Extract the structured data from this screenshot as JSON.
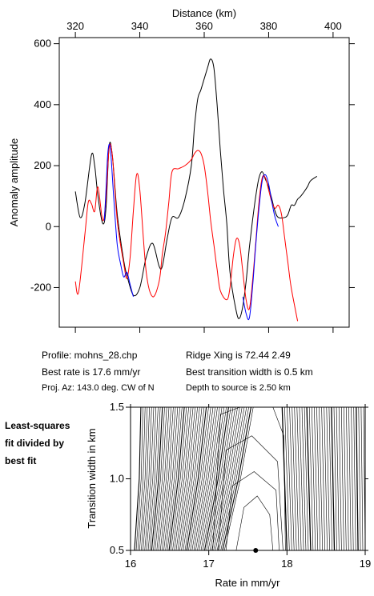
{
  "chart_data": [
    {
      "type": "line",
      "xlabel": "Distance (km)",
      "ylabel": "Anomaly amplitude",
      "xlim": [
        315,
        405
      ],
      "ylim": [
        -330,
        620
      ],
      "xticks": [
        "320",
        "340",
        "360",
        "380",
        "400"
      ],
      "yticks": [
        "600",
        "400",
        "200",
        "0",
        "-200"
      ],
      "xtick_values": [
        320,
        340,
        360,
        380,
        400
      ],
      "ytick_values": [
        600,
        400,
        200,
        0,
        -200
      ],
      "series": [
        {
          "color": "#000000",
          "x": [
            320,
            321.5,
            323,
            325,
            326,
            327,
            328.5,
            329.5,
            330.5,
            331.5,
            333,
            335,
            336,
            338,
            340,
            342,
            344,
            346,
            347,
            348.5,
            350,
            352,
            354,
            356,
            357,
            358,
            359,
            361,
            362,
            363,
            364,
            365,
            366,
            367,
            368,
            370,
            371,
            372,
            373,
            374,
            375,
            376,
            377,
            378,
            379,
            380,
            381,
            382,
            383,
            385,
            386,
            387,
            388,
            389,
            390,
            392,
            393,
            395
          ],
          "y": [
            115,
            30,
            80,
            235,
            200,
            100,
            10,
            60,
            265,
            230,
            40,
            -110,
            -160,
            -225,
            -200,
            -100,
            -55,
            -130,
            -130,
            -40,
            30,
            30,
            90,
            200,
            330,
            420,
            450,
            520,
            550,
            520,
            400,
            250,
            120,
            10,
            -150,
            -280,
            -300,
            -260,
            -180,
            -70,
            20,
            100,
            160,
            180,
            155,
            130,
            90,
            50,
            30,
            30,
            40,
            70,
            70,
            90,
            100,
            130,
            150,
            165
          ]
        },
        {
          "color": "#ff0000",
          "x": [
            320,
            321,
            323,
            324,
            325,
            326,
            327,
            328.5,
            329.5,
            330.5,
            331.5,
            333,
            335,
            336,
            337,
            338,
            339,
            340,
            342,
            344,
            346,
            347,
            348,
            349,
            350,
            352,
            354,
            356,
            357,
            358,
            359,
            360,
            361,
            362,
            363,
            364,
            365,
            367,
            368,
            369,
            370,
            371,
            372,
            373,
            374,
            375,
            376,
            377,
            378,
            379,
            380,
            381,
            382,
            383,
            384,
            385,
            386,
            387,
            389
          ],
          "y": [
            -180,
            -215,
            -20,
            80,
            75,
            50,
            130,
            20,
            90,
            260,
            230,
            20,
            -120,
            -170,
            -100,
            50,
            170,
            120,
            -150,
            -230,
            -180,
            -90,
            -20,
            80,
            180,
            190,
            200,
            220,
            240,
            250,
            240,
            200,
            120,
            20,
            -60,
            -140,
            -210,
            -240,
            -200,
            -100,
            -40,
            -60,
            -150,
            -240,
            -270,
            -180,
            -50,
            80,
            160,
            160,
            120,
            80,
            60,
            70,
            40,
            -40,
            -120,
            -200,
            -310
          ]
        },
        {
          "color": "#0000ff",
          "x": [
            329,
            329.5,
            330,
            330.5,
            331,
            332,
            333,
            334,
            335,
            336,
            337,
            338
          ],
          "y": [
            20,
            120,
            230,
            270,
            240,
            80,
            -60,
            -120,
            -165,
            -150,
            -190,
            -230
          ]
        },
        {
          "color": "#0000ff",
          "x": [
            372,
            373,
            374,
            375,
            376,
            377,
            378,
            379,
            380,
            381,
            382,
            383
          ],
          "y": [
            -230,
            -285,
            -300,
            -200,
            -60,
            60,
            150,
            170,
            140,
            80,
            30,
            0
          ]
        }
      ]
    },
    {
      "type": "contour",
      "xlabel": "Rate in mm/yr",
      "ylabel": "Transition width in km",
      "xlim": [
        16,
        19
      ],
      "ylim": [
        0.5,
        1.5
      ],
      "xticks": [
        "16",
        "17",
        "18",
        "19"
      ],
      "yticks": [
        "1.5",
        "1.0",
        "0.5"
      ],
      "xtick_values": [
        16,
        17,
        18,
        19
      ],
      "ytick_values": [
        1.5,
        1.0,
        0.5
      ],
      "best_fit": {
        "rate": 17.6,
        "width": 0.5
      }
    }
  ],
  "info": {
    "profile": "Profile: mohns_28.chp",
    "best_rate": "Best rate is 17.6 mm/yr",
    "proj_az": "Proj. Az: 143.0 deg. CW of N",
    "ridge_xing": "Ridge Xing is 72.44 2.49",
    "transition": "Best transition width is 0.5 km",
    "depth": "Depth to source is    2.50 km"
  },
  "side_label": [
    "Least-squares",
    "fit divided by",
    "best fit"
  ]
}
